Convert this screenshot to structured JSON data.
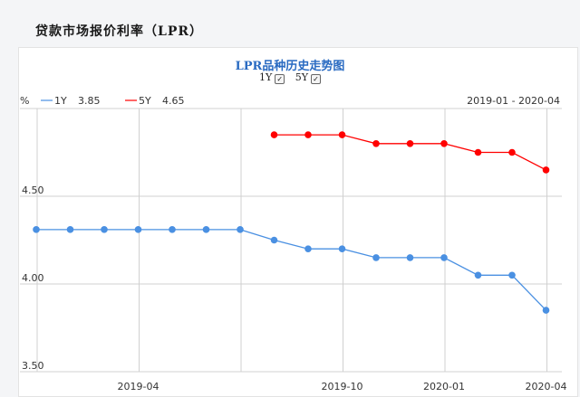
{
  "page_title": "贷款市场报价利率（LPR）",
  "chart_title": "LPR品种历史走势图",
  "toggles": [
    {
      "label": "1Y",
      "checked": true,
      "check_glyph": "✓"
    },
    {
      "label": "5Y",
      "checked": true,
      "check_glyph": "✓"
    }
  ],
  "unit_label": "%",
  "date_range": "2019-01 - 2020-04",
  "legend": [
    {
      "name": "1Y",
      "latest": "3.85",
      "color": "#4a90e2"
    },
    {
      "name": "5Y",
      "latest": "4.65",
      "color": "#ff0000"
    }
  ],
  "chart_data": {
    "type": "line",
    "title": "LPR品种历史走势图",
    "x": [
      "2019-01",
      "2019-02",
      "2019-03",
      "2019-04",
      "2019-05",
      "2019-06",
      "2019-07",
      "2019-08",
      "2019-09",
      "2019-10",
      "2019-11",
      "2019-12",
      "2020-01",
      "2020-02",
      "2020-03",
      "2020-04"
    ],
    "series": [
      {
        "name": "1Y",
        "color": "#4a90e2",
        "values": [
          4.31,
          4.31,
          4.31,
          4.31,
          4.31,
          4.31,
          4.31,
          4.25,
          4.2,
          4.2,
          4.15,
          4.15,
          4.15,
          4.05,
          4.05,
          3.85
        ]
      },
      {
        "name": "5Y",
        "color": "#ff0000",
        "values": [
          null,
          null,
          null,
          null,
          null,
          null,
          null,
          4.85,
          4.85,
          4.85,
          4.8,
          4.8,
          4.8,
          4.75,
          4.75,
          4.65
        ]
      }
    ],
    "yticks": [
      "3.50",
      "4.00",
      "4.50"
    ],
    "ylim": [
      3.5,
      5.0
    ],
    "xticks": [
      {
        "index": 3,
        "label": "2019-04"
      },
      {
        "index": 9,
        "label": "2019-10"
      },
      {
        "index": 12,
        "label": "2020-01"
      },
      {
        "index": 15,
        "label": "2020-04"
      }
    ],
    "grid": true
  }
}
